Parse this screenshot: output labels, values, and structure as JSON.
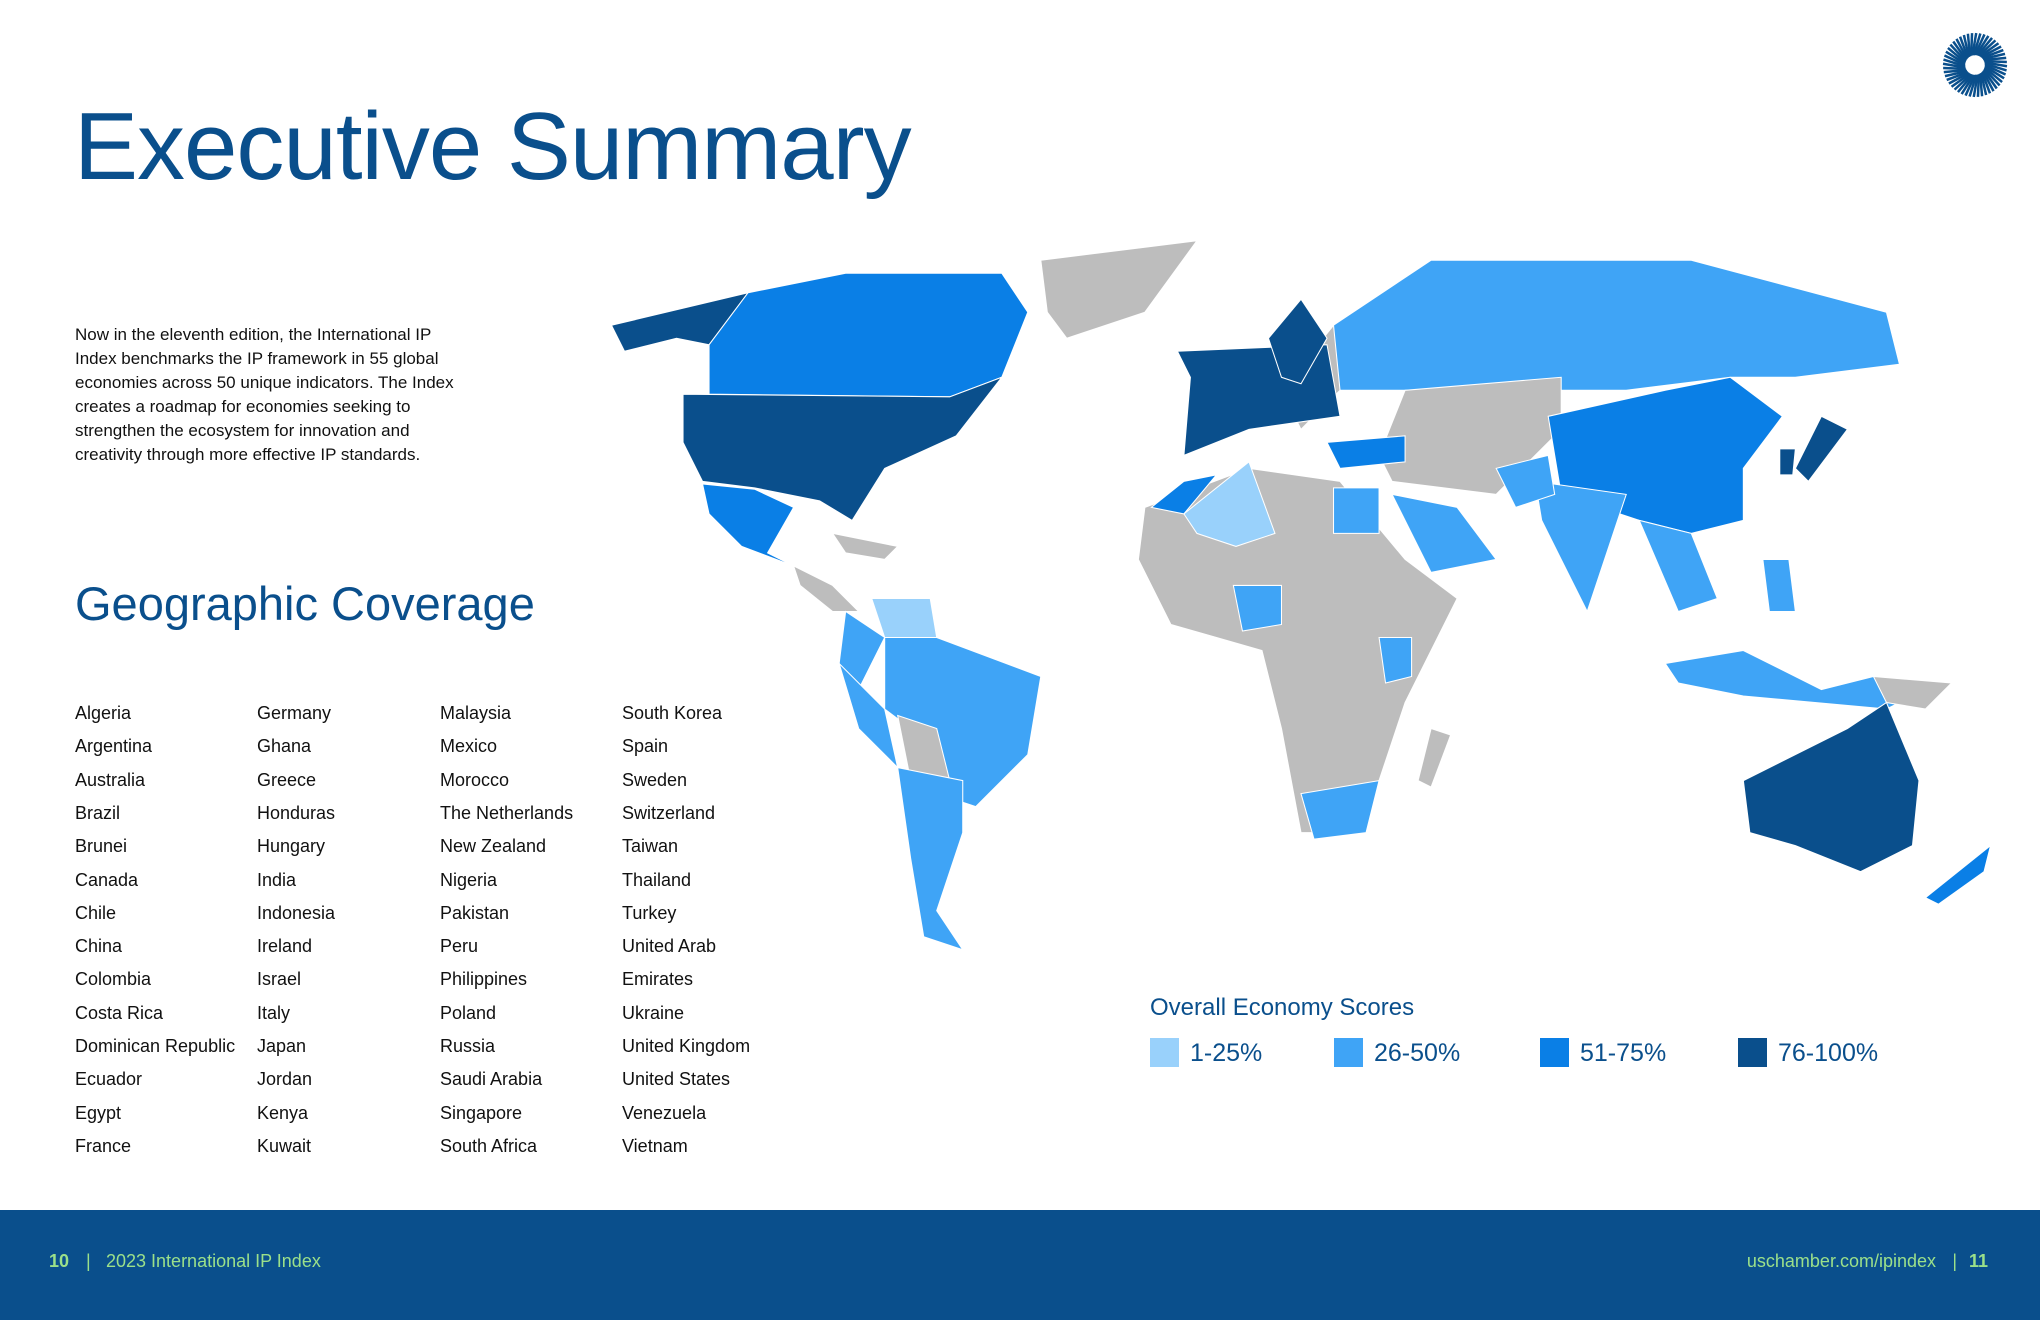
{
  "header": {
    "title": "Executive Summary"
  },
  "intro": "Now in the eleventh edition, the International IP Index benchmarks the IP framework in 55 global economies across 50 unique indicators. The Index creates a roadmap for economies seeking to strengthen the ecosystem for innovation and creativity through more effective IP standards.",
  "coverage": {
    "title": "Geographic Coverage",
    "columns": [
      [
        "Algeria",
        "Argentina",
        "Australia",
        "Brazil",
        "Brunei",
        "Canada",
        "Chile",
        "China",
        "Colombia",
        "Costa Rica",
        "Dominican Republic",
        "Ecuador",
        "Egypt",
        "France"
      ],
      [
        "Germany",
        "Ghana",
        "Greece",
        "Honduras",
        "Hungary",
        "India",
        "Indonesia",
        "Ireland",
        "Israel",
        "Italy",
        "Japan",
        "Jordan",
        "Kenya",
        "Kuwait"
      ],
      [
        "Malaysia",
        "Mexico",
        "Morocco",
        "The Netherlands",
        "New Zealand",
        "Nigeria",
        "Pakistan",
        "Peru",
        "Philippines",
        "Poland",
        "Russia",
        "Saudi Arabia",
        "Singapore",
        "South Africa"
      ],
      [
        "South Korea",
        "Spain",
        "Sweden",
        "Switzerland",
        "Taiwan",
        "Thailand",
        "Turkey",
        "United Arab",
        "Emirates",
        "Ukraine",
        "United Kingdom",
        "United States",
        "Venezuela",
        "Vietnam"
      ]
    ]
  },
  "legend": {
    "title": "Overall Economy Scores",
    "items": [
      {
        "label": "1-25%",
        "color": "#99d1fb"
      },
      {
        "label": "26-50%",
        "color": "#3fa4f6"
      },
      {
        "label": "51-75%",
        "color": "#0a7fe6"
      },
      {
        "label": "76-100%",
        "color": "#0a4f8c"
      }
    ]
  },
  "footer": {
    "left_page": "10",
    "left_separator": "|",
    "left_text": "2023 International IP Index",
    "right_text": "uschamber.com/ipindex",
    "right_separator": "|",
    "right_page": "11"
  }
}
